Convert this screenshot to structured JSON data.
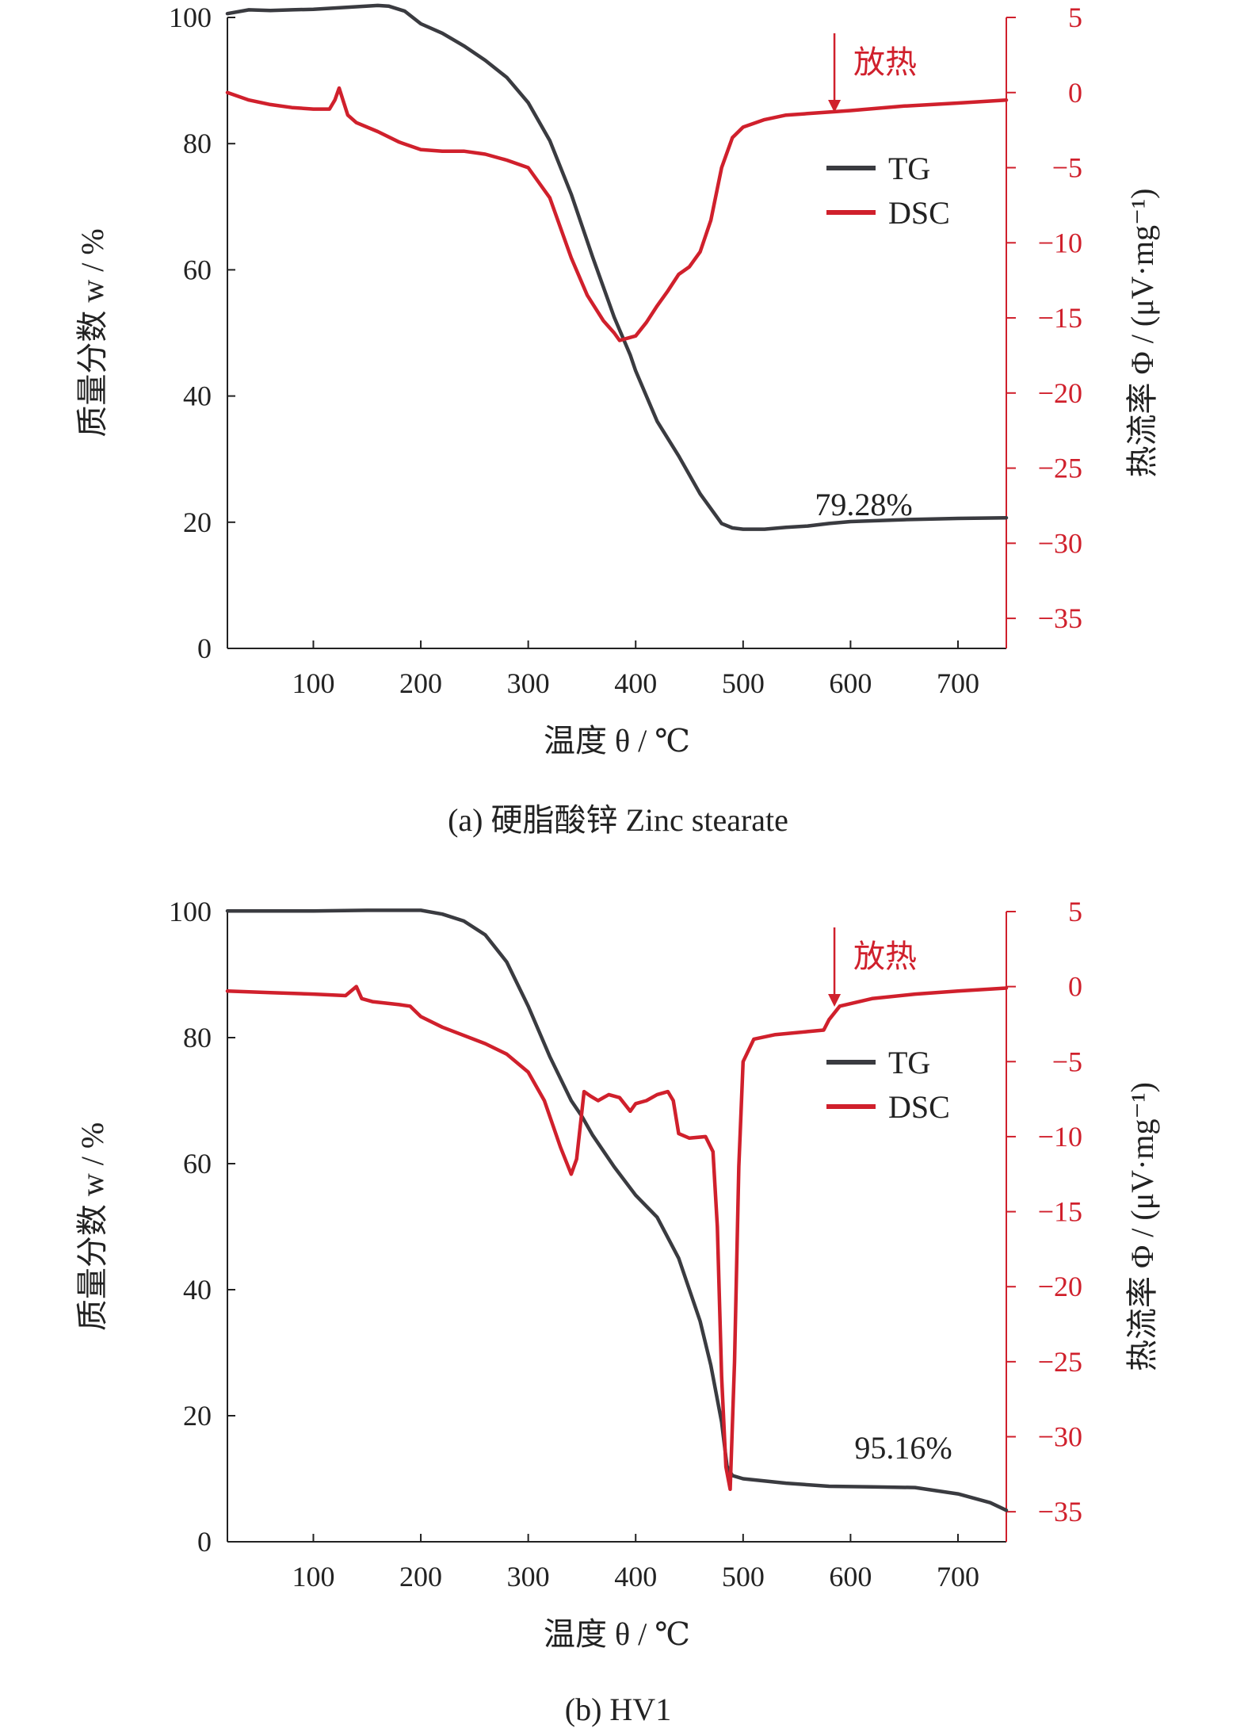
{
  "figure": {
    "exo_label": "放热",
    "colors": {
      "tg": "#3a3b40",
      "dsc": "#d0202c",
      "axis": "#222222"
    }
  },
  "chart_data": [
    {
      "type": "line",
      "caption": "(a) 硬脂酸锌 Zinc stearate",
      "xlabel": "温度 θ / ℃",
      "ylabel_left": "质量分数 w / %",
      "ylabel_right": "热流率 Φ / (μV·mg⁻¹)",
      "xlim": [
        20,
        745
      ],
      "xticks": [
        100,
        200,
        300,
        400,
        500,
        600,
        700
      ],
      "ylim_left": [
        0,
        100
      ],
      "yticks_left": [
        0,
        20,
        40,
        60,
        80,
        100
      ],
      "ylim_right": [
        -37,
        5
      ],
      "yticks_right": [
        5,
        0,
        -5,
        -10,
        -15,
        -20,
        -25,
        -30,
        -35
      ],
      "ytick_labels_right": [
        "5",
        "0",
        "−5",
        "−10",
        "−15",
        "−20",
        "−25",
        "−30",
        "−35"
      ],
      "legend": {
        "entries": [
          "TG",
          "DSC"
        ],
        "placement": "top-right"
      },
      "annotation": "79.28%",
      "exo_arrow_x": 585,
      "series": [
        {
          "name": "TG",
          "axis": "left",
          "x": [
            20,
            40,
            60,
            80,
            100,
            120,
            140,
            160,
            170,
            185,
            200,
            220,
            240,
            260,
            280,
            300,
            320,
            340,
            360,
            380,
            395,
            400,
            420,
            440,
            460,
            480,
            490,
            500,
            520,
            540,
            560,
            580,
            600,
            650,
            700,
            745
          ],
          "y": [
            100.6,
            101.2,
            101.1,
            101.2,
            101.3,
            101.5,
            101.7,
            101.9,
            101.8,
            101.0,
            99.0,
            97.5,
            95.5,
            93.2,
            90.5,
            86.5,
            80.5,
            72.0,
            62.0,
            52.5,
            46.5,
            44.0,
            36.0,
            30.5,
            24.5,
            19.8,
            19.1,
            18.9,
            18.9,
            19.2,
            19.4,
            19.8,
            20.1,
            20.4,
            20.6,
            20.7
          ]
        },
        {
          "name": "DSC",
          "axis": "right",
          "x": [
            20,
            40,
            60,
            80,
            100,
            115,
            120,
            124,
            128,
            132,
            140,
            160,
            180,
            200,
            220,
            240,
            260,
            280,
            300,
            320,
            340,
            355,
            370,
            380,
            385,
            390,
            400,
            410,
            420,
            430,
            440,
            450,
            460,
            470,
            480,
            490,
            500,
            520,
            540,
            560,
            580,
            600,
            650,
            700,
            745
          ],
          "y": [
            0.0,
            -0.5,
            -0.8,
            -1.0,
            -1.1,
            -1.1,
            -0.5,
            0.3,
            -0.6,
            -1.5,
            -2.0,
            -2.6,
            -3.3,
            -3.8,
            -3.9,
            -3.9,
            -4.1,
            -4.5,
            -5.0,
            -7.0,
            -11.0,
            -13.5,
            -15.2,
            -16.0,
            -16.5,
            -16.4,
            -16.2,
            -15.3,
            -14.2,
            -13.2,
            -12.1,
            -11.6,
            -10.6,
            -8.5,
            -5.0,
            -3.0,
            -2.3,
            -1.8,
            -1.5,
            -1.4,
            -1.3,
            -1.2,
            -0.9,
            -0.7,
            -0.5
          ]
        }
      ]
    },
    {
      "type": "line",
      "caption": "(b) HV1",
      "xlabel": "温度 θ / ℃",
      "ylabel_left": "质量分数 w / %",
      "ylabel_right": "热流率 Φ / (μV·mg⁻¹)",
      "xlim": [
        20,
        745
      ],
      "xticks": [
        100,
        200,
        300,
        400,
        500,
        600,
        700
      ],
      "ylim_left": [
        0,
        100
      ],
      "yticks_left": [
        0,
        20,
        40,
        60,
        80,
        100
      ],
      "ylim_right": [
        -37,
        5
      ],
      "yticks_right": [
        5,
        0,
        -5,
        -10,
        -15,
        -20,
        -25,
        -30,
        -35
      ],
      "ytick_labels_right": [
        "5",
        "0",
        "−5",
        "−10",
        "−15",
        "−20",
        "−25",
        "−30",
        "−35"
      ],
      "legend": {
        "entries": [
          "TG",
          "DSC"
        ],
        "placement": "top-right"
      },
      "annotation": "95.16%",
      "exo_arrow_x": 585,
      "series": [
        {
          "name": "TG",
          "axis": "left",
          "x": [
            20,
            50,
            100,
            150,
            200,
            220,
            240,
            260,
            280,
            300,
            320,
            340,
            350,
            360,
            380,
            400,
            420,
            440,
            460,
            470,
            480,
            485,
            490,
            500,
            540,
            580,
            620,
            660,
            700,
            730,
            745
          ],
          "y": [
            100.1,
            100.1,
            100.1,
            100.2,
            100.2,
            99.6,
            98.5,
            96.3,
            92.0,
            85.0,
            77.0,
            70.0,
            67.5,
            64.5,
            59.5,
            55.0,
            51.5,
            45.0,
            35.0,
            28.0,
            19.0,
            12.0,
            10.5,
            10.0,
            9.3,
            8.8,
            8.7,
            8.6,
            7.6,
            6.2,
            5.0
          ]
        },
        {
          "name": "DSC",
          "axis": "right",
          "x": [
            20,
            60,
            100,
            130,
            140,
            145,
            155,
            180,
            190,
            200,
            220,
            260,
            280,
            300,
            315,
            330,
            340,
            345,
            352,
            358,
            365,
            375,
            385,
            395,
            400,
            410,
            420,
            430,
            435,
            440,
            450,
            465,
            472,
            476,
            480,
            484,
            488,
            492,
            496,
            500,
            510,
            530,
            560,
            575,
            580,
            590,
            620,
            660,
            700,
            745
          ],
          "y": [
            -0.3,
            -0.4,
            -0.5,
            -0.6,
            0.0,
            -0.8,
            -1.0,
            -1.2,
            -1.3,
            -2.0,
            -2.7,
            -3.8,
            -4.5,
            -5.7,
            -7.6,
            -10.7,
            -12.5,
            -11.5,
            -7.0,
            -7.3,
            -7.6,
            -7.2,
            -7.4,
            -8.3,
            -7.8,
            -7.6,
            -7.2,
            -7.0,
            -7.6,
            -9.8,
            -10.1,
            -10.0,
            -11.0,
            -16.0,
            -26.0,
            -32.0,
            -33.5,
            -25.0,
            -12.0,
            -5.0,
            -3.5,
            -3.2,
            -3.0,
            -2.9,
            -2.2,
            -1.3,
            -0.8,
            -0.5,
            -0.3,
            -0.1
          ]
        }
      ]
    }
  ]
}
